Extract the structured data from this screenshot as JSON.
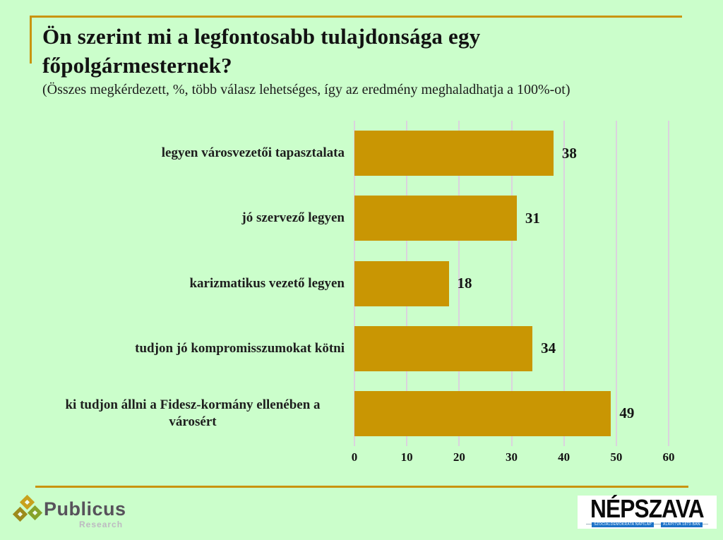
{
  "title": "Ön szerint mi a legfontosabb tulajdonsága egy főpolgármesternek?",
  "subtitle": "(Összes megkérdezett, %, több válasz lehetséges, így az eredmény meghaladhatja a 100%-ot)",
  "chart_data": {
    "type": "bar",
    "orientation": "horizontal",
    "categories": [
      "legyen városvezetői tapasztalata",
      "jó szervező legyen",
      "karizmatikus vezető legyen",
      "tudjon jó kompromisszumokat kötni",
      "ki tudjon állni a Fidesz-kormány ellenében a városért"
    ],
    "values": [
      38,
      31,
      18,
      34,
      49
    ],
    "xlim": [
      0,
      60
    ],
    "x_ticks": [
      0,
      10,
      20,
      30,
      40,
      50,
      60
    ],
    "grid": "vertical-only",
    "legend": "none",
    "bar_color": "#C99603"
  },
  "colors": {
    "background": "#CBFECB",
    "accent_line": "#C9940E",
    "gridline": "#DBD2DE",
    "bar": "#C99603",
    "title_text": "#121212",
    "nepszava_badge_blue": "#1C72C8"
  },
  "footer": {
    "publicus": {
      "wordmark": "Publicus",
      "subtext": "Research"
    },
    "nepszava": {
      "wordmark": "NÉPSZAVA",
      "tagline_left": "SZOCIÁLDEMOKRATA NAPILAP",
      "tagline_right": "ALAPÍTVA 1873-BAN"
    }
  }
}
